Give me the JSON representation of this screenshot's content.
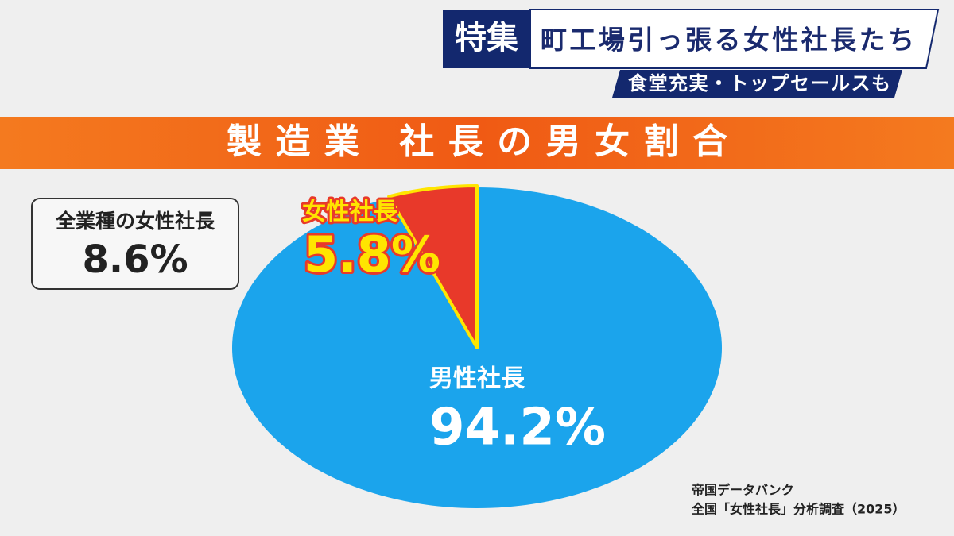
{
  "header": {
    "tag": "特集",
    "headline": "町工場引っ張る女性社長たち",
    "subheadline": "食堂充実・トップセールスも"
  },
  "chart_data": {
    "type": "pie",
    "title": "製造業 社長の男女割合",
    "categories": [
      "女性社長",
      "男性社長"
    ],
    "values": [
      5.8,
      94.2
    ],
    "value_labels": [
      "5.8%",
      "94.2%"
    ],
    "colors": [
      "#e8392a",
      "#1ba4ec"
    ],
    "annotation": {
      "text": "全業種の女性社長",
      "value": 8.6,
      "value_label": "8.6%"
    },
    "source": [
      "帝国データバンク",
      "全国「女性社長」分析調査（2025）"
    ]
  }
}
